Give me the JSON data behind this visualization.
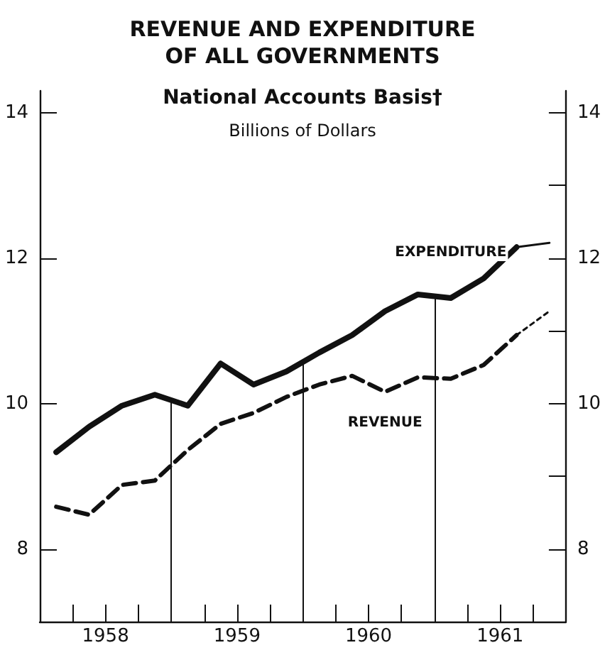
{
  "chart_data": {
    "type": "line",
    "title": "REVENUE AND EXPENDITURE\nOF ALL GOVERNMENTS",
    "subtitle": "National Accounts Basis†",
    "ylabel": "Billions of Dollars",
    "series": [
      {
        "name": "EXPENDITURE",
        "color": "#111111",
        "line_style": "solid",
        "x": [
          1958.125,
          1958.375,
          1958.625,
          1958.875,
          1959.125,
          1959.375,
          1959.625,
          1959.875,
          1960.125,
          1960.375,
          1960.625,
          1960.875,
          1961.125,
          1961.375,
          1961.625
        ],
        "values": [
          9.33,
          9.68,
          9.97,
          10.12,
          9.97,
          10.55,
          10.26,
          10.44,
          10.7,
          10.94,
          11.27,
          11.5,
          11.45,
          11.72,
          12.15
        ]
      },
      {
        "color": "#111111",
        "line_style": "solid",
        "x": [
          1961.625,
          1961.875
        ],
        "values": [
          12.15,
          12.21
        ]
      },
      {
        "name": "REVENUE",
        "color": "#111111",
        "line_style": "dashed",
        "x": [
          1958.125,
          1958.375,
          1958.625,
          1958.875,
          1959.125,
          1959.375,
          1959.625,
          1959.875,
          1960.125,
          1960.375,
          1960.625,
          1960.875,
          1961.125,
          1961.375,
          1961.625
        ],
        "values": [
          8.58,
          8.47,
          8.88,
          8.94,
          9.36,
          9.72,
          9.87,
          10.09,
          10.26,
          10.38,
          10.16,
          10.36,
          10.34,
          10.53,
          10.94
        ]
      },
      {
        "color": "#111111",
        "line_style": "dotted",
        "x": [
          1961.625,
          1961.875
        ],
        "values": [
          10.94,
          11.27
        ]
      }
    ],
    "xlim": [
      1958,
      1962
    ],
    "xticks": [
      {
        "value": 1958.25,
        "label": null
      },
      {
        "value": 1958.5,
        "label": "1958"
      },
      {
        "value": 1958.75,
        "label": null
      },
      {
        "value": 1959.25,
        "label": null
      },
      {
        "value": 1959.5,
        "label": "1959"
      },
      {
        "value": 1959.75,
        "label": null
      },
      {
        "value": 1960.25,
        "label": null
      },
      {
        "value": 1960.5,
        "label": "1960"
      },
      {
        "value": 1960.75,
        "label": null
      },
      {
        "value": 1961.25,
        "label": null
      },
      {
        "value": 1961.5,
        "label": "1961"
      },
      {
        "value": 1961.75,
        "label": null
      }
    ],
    "ylim": [
      7,
      14.3
    ],
    "yticks": [
      8,
      10,
      12,
      14
    ],
    "y2lim": [
      7,
      14.3
    ],
    "y2ticks": [
      8,
      {
        "value": 9,
        "label": null
      },
      10,
      {
        "value": 11,
        "label": null
      },
      12,
      {
        "value": 13,
        "label": null
      },
      14
    ],
    "ref_lines": [
      {
        "axis": "x",
        "value": 1959
      },
      {
        "axis": "x",
        "value": 1960
      },
      {
        "axis": "x",
        "value": 1961
      }
    ],
    "grid": false,
    "legend": false,
    "marker": "none"
  }
}
